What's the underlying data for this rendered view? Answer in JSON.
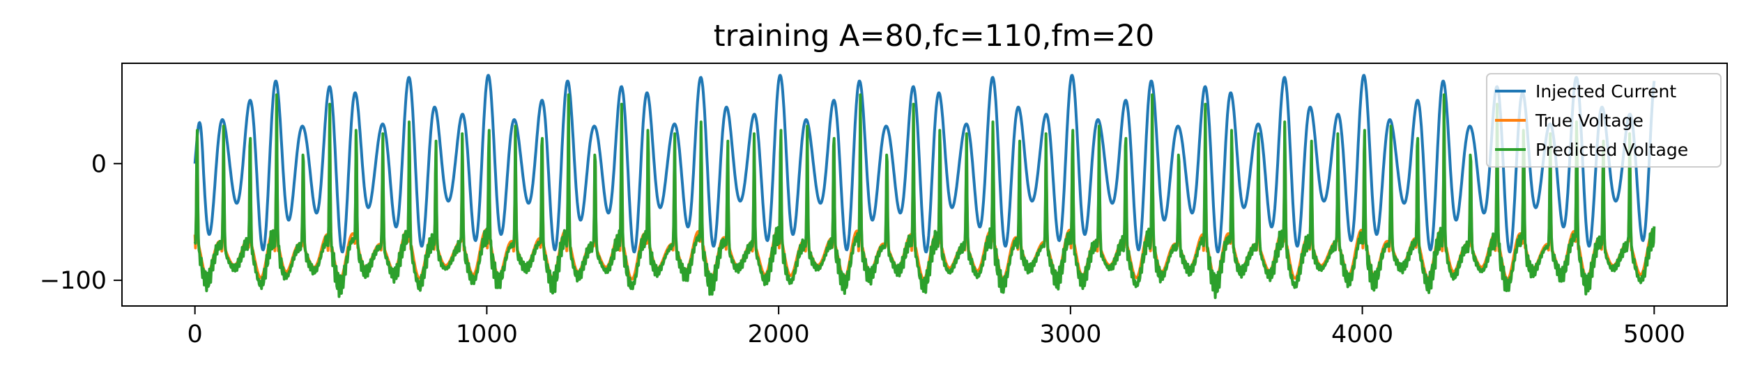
{
  "chart_data": {
    "type": "line",
    "title": "training A=80,fc=110,fm=20",
    "xlabel": "",
    "ylabel": "",
    "xlim": [
      -250,
      5250
    ],
    "ylim": [
      -122,
      86
    ],
    "xticks": [
      0,
      1000,
      2000,
      3000,
      4000,
      5000
    ],
    "xtick_labels": [
      "0",
      "1000",
      "2000",
      "3000",
      "4000",
      "5000"
    ],
    "yticks": [
      0,
      -100
    ],
    "ytick_labels": [
      "0",
      "−100"
    ],
    "grid": false,
    "legend_position": "upper right",
    "series": [
      {
        "name": "Injected Current",
        "color": "#1f77b4",
        "description": "AM sinusoid, amplitude 80 modulated at 20 Hz with 110 Hz carrier; peaks ~76, small oscillations ~±12",
        "x_range": [
          0,
          5000
        ],
        "y_range": [
          -79,
          76
        ]
      },
      {
        "name": "True Voltage",
        "color": "#ff7f0e",
        "x_range": [
          0,
          5000
        ],
        "y_range": [
          -100,
          62
        ]
      },
      {
        "name": "Predicted Voltage",
        "color": "#2ca02c",
        "x_range": [
          0,
          5000
        ],
        "y_range": [
          -112,
          66
        ]
      }
    ]
  }
}
